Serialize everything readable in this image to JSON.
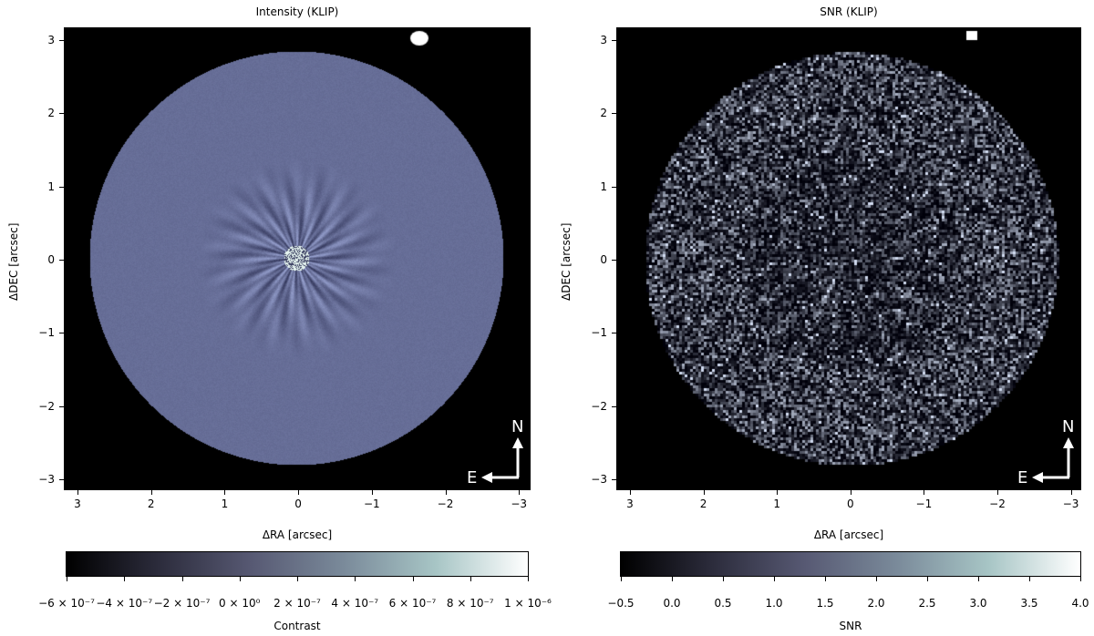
{
  "panels": [
    {
      "title": "Intensity (KLIP)",
      "xlabel": "ΔRA [arcsec]",
      "ylabel": "ΔDEC [arcsec]",
      "xticks": [
        "3",
        "2",
        "1",
        "0",
        "−1",
        "−2",
        "−3"
      ],
      "yticks": [
        "3",
        "2",
        "1",
        "0",
        "−1",
        "−2",
        "−3"
      ],
      "compass": {
        "north": "N",
        "east": "E"
      },
      "colorbar": {
        "label": "Contrast",
        "ticks": [
          "−6 × 10⁻⁷",
          "−4 × 10⁻⁷",
          "−2 × 10⁻⁷",
          "0 × 10⁰",
          "2 × 10⁻⁷",
          "4 × 10⁻⁷",
          "6 × 10⁻⁷",
          "8 × 10⁻⁷",
          "1 × 10⁻⁶"
        ],
        "colormap": [
          "#000000",
          "#2c2c3c",
          "#575973",
          "#7a8a9a",
          "#a7c5c5",
          "#ffffff"
        ]
      }
    },
    {
      "title": "SNR (KLIP)",
      "xlabel": "ΔRA [arcsec]",
      "ylabel": "ΔDEC [arcsec]",
      "xticks": [
        "3",
        "2",
        "1",
        "0",
        "−1",
        "−2",
        "−3"
      ],
      "yticks": [
        "3",
        "2",
        "1",
        "0",
        "−1",
        "−2",
        "−3"
      ],
      "compass": {
        "north": "N",
        "east": "E"
      },
      "colorbar": {
        "label": "SNR",
        "ticks": [
          "−0.5",
          "0.0",
          "0.5",
          "1.0",
          "1.5",
          "2.0",
          "2.5",
          "3.0",
          "3.5",
          "4.0"
        ],
        "colormap": [
          "#000000",
          "#2c2c3c",
          "#575973",
          "#7a8a9a",
          "#a7c5c5",
          "#ffffff"
        ]
      }
    }
  ]
}
